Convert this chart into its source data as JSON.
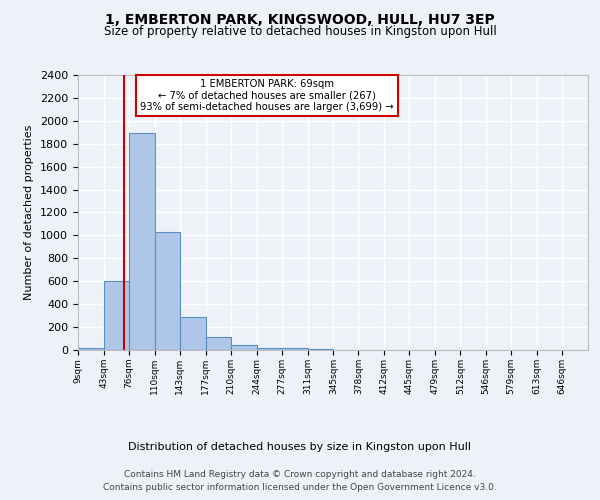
{
  "title": "1, EMBERTON PARK, KINGSWOOD, HULL, HU7 3EP",
  "subtitle": "Size of property relative to detached houses in Kingston upon Hull",
  "xlabel": "Distribution of detached houses by size in Kingston upon Hull",
  "ylabel": "Number of detached properties",
  "bin_edges": [
    9,
    43,
    76,
    110,
    143,
    177,
    210,
    244,
    277,
    311,
    345,
    378,
    412,
    445,
    479,
    512,
    546,
    579,
    613,
    646,
    680
  ],
  "bar_heights": [
    15,
    600,
    1890,
    1030,
    285,
    115,
    40,
    20,
    15,
    5,
    3,
    2,
    1,
    1,
    0,
    0,
    0,
    0,
    0,
    0
  ],
  "bar_color": "#aec6e8",
  "bar_edgecolor": "#5a8fc2",
  "property_size": 69,
  "vline_color": "#cc0000",
  "annotation_text": "1 EMBERTON PARK: 69sqm\n← 7% of detached houses are smaller (267)\n93% of semi-detached houses are larger (3,699) →",
  "annotation_box_edgecolor": "#cc0000",
  "ylim": [
    0,
    2400
  ],
  "yticks": [
    0,
    200,
    400,
    600,
    800,
    1000,
    1200,
    1400,
    1600,
    1800,
    2000,
    2200,
    2400
  ],
  "footer_line1": "Contains HM Land Registry data © Crown copyright and database right 2024.",
  "footer_line2": "Contains public sector information licensed under the Open Government Licence v3.0.",
  "bg_color": "#eef2f8",
  "grid_color": "#ffffff"
}
